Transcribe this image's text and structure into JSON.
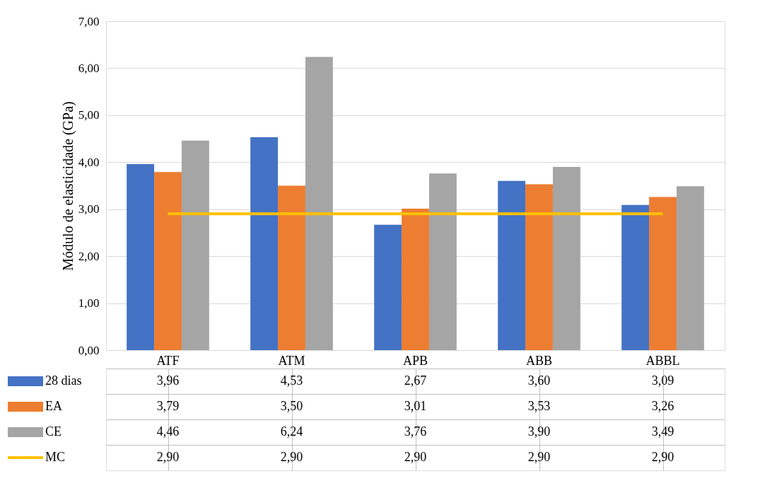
{
  "chart_data": {
    "type": "bar",
    "ylabel": "Módulo de elasticidade (GPa)",
    "categories": [
      "ATF",
      "ATM",
      "APB",
      "ABB",
      "ABBL"
    ],
    "series": [
      {
        "name": "28 dias",
        "color": "#4472c4",
        "values": [
          3.96,
          4.53,
          2.67,
          3.6,
          3.09
        ],
        "value_labels": [
          "3,96",
          "4,53",
          "2,67",
          "3,60",
          "3,09"
        ]
      },
      {
        "name": "EA",
        "color": "#ed7d31",
        "values": [
          3.79,
          3.5,
          3.01,
          3.53,
          3.26
        ],
        "value_labels": [
          "3,79",
          "3,50",
          "3,01",
          "3,53",
          "3,26"
        ]
      },
      {
        "name": "CE",
        "color": "#a5a5a5",
        "values": [
          4.46,
          6.24,
          3.76,
          3.9,
          3.49
        ],
        "value_labels": [
          "4,46",
          "6,24",
          "3,76",
          "3,90",
          "3,49"
        ]
      },
      {
        "name": "MC",
        "color": "#ffc000",
        "type": "line",
        "values": [
          2.9,
          2.9,
          2.9,
          2.9,
          2.9
        ],
        "value_labels": [
          "2,90",
          "2,90",
          "2,90",
          "2,90",
          "2,90"
        ]
      }
    ],
    "ylim": [
      0,
      7
    ],
    "yticks": [
      {
        "value": 0,
        "label": "0,00"
      },
      {
        "value": 1,
        "label": "1,00"
      },
      {
        "value": 2,
        "label": "2,00"
      },
      {
        "value": 3,
        "label": "3,00"
      },
      {
        "value": 4,
        "label": "4,00"
      },
      {
        "value": 5,
        "label": "5,00"
      },
      {
        "value": 6,
        "label": "6,00"
      },
      {
        "value": 7,
        "label": "7,00"
      }
    ],
    "grid": "y",
    "legend": "bottom"
  }
}
